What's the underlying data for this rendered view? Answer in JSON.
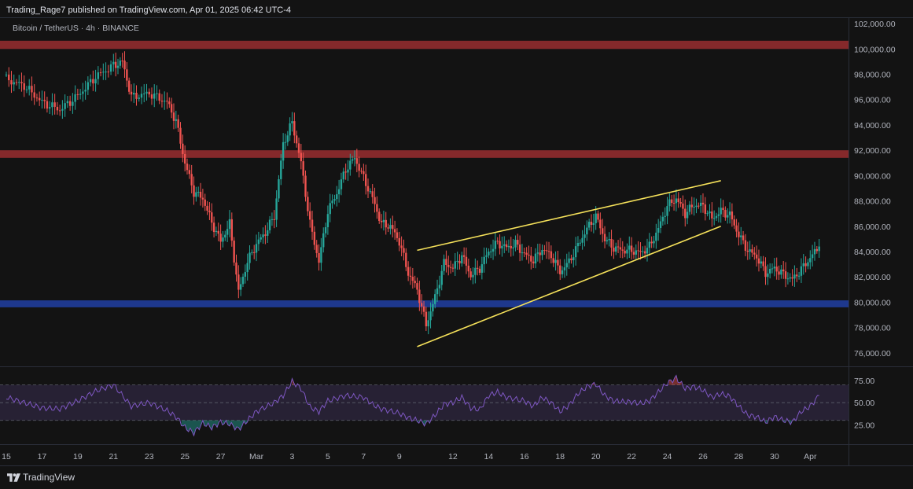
{
  "header": {
    "published": "Trading_Rage7 published on TradingView.com, Apr 01, 2025 06:42 UTC-4",
    "symbol": "Bitcoin / TetherUS · 4h · BINANCE"
  },
  "footer": {
    "brand": "TradingView",
    "brand_icon": "tradingview-logo-icon"
  },
  "colors": {
    "background": "#131313",
    "up": "#26a69a",
    "down": "#ef5350",
    "resistance_zone": "#8b2a2c",
    "support_zone": "#1f3a93",
    "trendline": "#f5e15a",
    "rsi_line": "#7e57c2",
    "rsi_band": "#2a2338"
  },
  "chart_data": [
    {
      "type": "candlestick",
      "title": "",
      "timeframe": "4h",
      "ylim": [
        75000,
        102500
      ],
      "y_ticks": [
        "76,000.00",
        "78,000.00",
        "80,000.00",
        "82,000.00",
        "84,000.00",
        "86,000.00",
        "88,000.00",
        "90,000.00",
        "92,000.00",
        "94,000.00",
        "96,000.00",
        "98,000.00",
        "100,000.00",
        "102,000.00"
      ],
      "x_ticks": [
        "15",
        "17",
        "19",
        "21",
        "23",
        "25",
        "27",
        "Mar",
        "3",
        "5",
        "7",
        "9",
        "12",
        "14",
        "16",
        "18",
        "20",
        "22",
        "24",
        "26",
        "28",
        "30",
        "Apr"
      ],
      "x_range": [
        "2025-02-15",
        "2025-04-02"
      ],
      "grid": false,
      "zones": [
        {
          "kind": "resistance",
          "from": 100000,
          "to": 100650
        },
        {
          "kind": "resistance",
          "from": 91400,
          "to": 92000
        },
        {
          "kind": "support",
          "from": 79600,
          "to": 80150
        }
      ],
      "trendlines": [
        {
          "x1": "2025-03-10",
          "y1": 84100,
          "x2": "2025-03-27",
          "y2": 89600
        },
        {
          "x1": "2025-03-10",
          "y1": 76500,
          "x2": "2025-03-27",
          "y2": 86000
        }
      ],
      "series": [
        {
          "type": "close_path",
          "points": [
            [
              "2025-02-15",
              97600
            ],
            [
              "2025-02-16",
              97100
            ],
            [
              "2025-02-17",
              95800
            ],
            [
              "2025-02-18",
              95200
            ],
            [
              "2025-02-19",
              96300
            ],
            [
              "2025-02-20",
              97800
            ],
            [
              "2025-02-21",
              98700
            ],
            [
              "2025-02-21T12",
              99000
            ],
            [
              "2025-02-22",
              96200
            ],
            [
              "2025-02-23",
              96500
            ],
            [
              "2025-02-24",
              95800
            ],
            [
              "2025-02-24T12",
              94300
            ],
            [
              "2025-02-25",
              91000
            ],
            [
              "2025-02-25T12",
              88700
            ],
            [
              "2025-02-26",
              88200
            ],
            [
              "2025-02-26T12",
              86300
            ],
            [
              "2025-02-27",
              84800
            ],
            [
              "2025-02-27T12",
              86200
            ],
            [
              "2025-02-28",
              80800
            ],
            [
              "2025-02-28T12",
              83200
            ],
            [
              "2025-03-01",
              84600
            ],
            [
              "2025-03-01T12",
              85500
            ],
            [
              "2025-03-02",
              86800
            ],
            [
              "2025-03-02T12",
              92500
            ],
            [
              "2025-03-03",
              94200
            ],
            [
              "2025-03-03T12",
              91000
            ],
            [
              "2025-03-04",
              86200
            ],
            [
              "2025-03-04T12",
              83200
            ],
            [
              "2025-03-05",
              87200
            ],
            [
              "2025-03-05T12",
              88600
            ],
            [
              "2025-03-06",
              90500
            ],
            [
              "2025-03-06T12",
              91400
            ],
            [
              "2025-03-07",
              89800
            ],
            [
              "2025-03-07T12",
              88200
            ],
            [
              "2025-03-08",
              86200
            ],
            [
              "2025-03-08T12",
              86000
            ],
            [
              "2025-03-09",
              84800
            ],
            [
              "2025-03-09T12",
              82300
            ],
            [
              "2025-03-10",
              81000
            ],
            [
              "2025-03-10T12",
              78200
            ],
            [
              "2025-03-11",
              80400
            ],
            [
              "2025-03-11T12",
              83100
            ],
            [
              "2025-03-12",
              82700
            ],
            [
              "2025-03-12T12",
              83700
            ],
            [
              "2025-03-13",
              82100
            ],
            [
              "2025-03-13T12",
              82700
            ],
            [
              "2025-03-14",
              84000
            ],
            [
              "2025-03-14T12",
              84700
            ],
            [
              "2025-03-15",
              84300
            ],
            [
              "2025-03-15T12",
              84600
            ],
            [
              "2025-03-16",
              83800
            ],
            [
              "2025-03-16T12",
              83300
            ],
            [
              "2025-03-17",
              84200
            ],
            [
              "2025-03-17T12",
              83700
            ],
            [
              "2025-03-18",
              82400
            ],
            [
              "2025-03-18T12",
              83200
            ],
            [
              "2025-03-19",
              84500
            ],
            [
              "2025-03-19T12",
              85800
            ],
            [
              "2025-03-20",
              86800
            ],
            [
              "2025-03-20T12",
              85000
            ],
            [
              "2025-03-21",
              84300
            ],
            [
              "2025-03-21T12",
              84100
            ],
            [
              "2025-03-22",
              84100
            ],
            [
              "2025-03-22T12",
              83900
            ],
            [
              "2025-03-23",
              84400
            ],
            [
              "2025-03-23T12",
              85800
            ],
            [
              "2025-03-24",
              87600
            ],
            [
              "2025-03-24T12",
              88200
            ],
            [
              "2025-03-25",
              87000
            ],
            [
              "2025-03-25T12",
              87700
            ],
            [
              "2025-03-26",
              87600
            ],
            [
              "2025-03-26T12",
              86600
            ],
            [
              "2025-03-27",
              87200
            ],
            [
              "2025-03-27T12",
              86900
            ],
            [
              "2025-03-28",
              85300
            ],
            [
              "2025-03-28T12",
              84100
            ],
            [
              "2025-03-29",
              83600
            ],
            [
              "2025-03-29T12",
              82300
            ],
            [
              "2025-03-30",
              82700
            ],
            [
              "2025-03-30T12",
              82200
            ],
            [
              "2025-03-31",
              81800
            ],
            [
              "2025-03-31T12",
              82600
            ],
            [
              "2025-04-01",
              83500
            ],
            [
              "2025-04-01T12",
              84400
            ]
          ]
        }
      ]
    },
    {
      "type": "line",
      "title": "",
      "ylim": [
        5,
        90
      ],
      "y_ticks": [
        "25.00",
        "50.00",
        "75.00"
      ],
      "bands": [
        30,
        70
      ],
      "series": [
        {
          "type": "rsi",
          "points": [
            [
              "2025-02-15",
              56
            ],
            [
              "2025-02-16",
              50
            ],
            [
              "2025-02-17",
              44
            ],
            [
              "2025-02-18",
              43
            ],
            [
              "2025-02-19",
              52
            ],
            [
              "2025-02-20",
              63
            ],
            [
              "2025-02-21",
              70
            ],
            [
              "2025-02-22",
              46
            ],
            [
              "2025-02-23",
              50
            ],
            [
              "2025-02-24",
              41
            ],
            [
              "2025-02-24T12",
              34
            ],
            [
              "2025-02-25",
              22
            ],
            [
              "2025-02-25T12",
              16
            ],
            [
              "2025-02-26",
              27
            ],
            [
              "2025-02-26T12",
              22
            ],
            [
              "2025-02-27",
              28
            ],
            [
              "2025-02-27T12",
              26
            ],
            [
              "2025-02-28",
              20
            ],
            [
              "2025-02-28T12",
              30
            ],
            [
              "2025-03-01",
              40
            ],
            [
              "2025-03-02",
              50
            ],
            [
              "2025-03-02T12",
              58
            ],
            [
              "2025-03-03",
              74
            ],
            [
              "2025-03-03T12",
              66
            ],
            [
              "2025-03-04",
              45
            ],
            [
              "2025-03-04T12",
              40
            ],
            [
              "2025-03-05",
              52
            ],
            [
              "2025-03-06",
              58
            ],
            [
              "2025-03-07",
              56
            ],
            [
              "2025-03-07T12",
              48
            ],
            [
              "2025-03-08",
              43
            ],
            [
              "2025-03-09",
              38
            ],
            [
              "2025-03-09T12",
              33
            ],
            [
              "2025-03-10",
              30
            ],
            [
              "2025-03-10T12",
              26
            ],
            [
              "2025-03-11",
              36
            ],
            [
              "2025-03-11T12",
              48
            ],
            [
              "2025-03-12",
              50
            ],
            [
              "2025-03-12T12",
              56
            ],
            [
              "2025-03-13",
              44
            ],
            [
              "2025-03-13T12",
              42
            ],
            [
              "2025-03-14",
              58
            ],
            [
              "2025-03-14T12",
              62
            ],
            [
              "2025-03-15",
              56
            ],
            [
              "2025-03-16",
              52
            ],
            [
              "2025-03-16T12",
              46
            ],
            [
              "2025-03-17",
              56
            ],
            [
              "2025-03-17T12",
              50
            ],
            [
              "2025-03-18",
              40
            ],
            [
              "2025-03-18T12",
              47
            ],
            [
              "2025-03-19",
              60
            ],
            [
              "2025-03-19T12",
              68
            ],
            [
              "2025-03-20",
              71
            ],
            [
              "2025-03-20T12",
              58
            ],
            [
              "2025-03-21",
              52
            ],
            [
              "2025-03-21T12",
              51
            ],
            [
              "2025-03-22",
              51
            ],
            [
              "2025-03-22T12",
              49
            ],
            [
              "2025-03-23",
              52
            ],
            [
              "2025-03-23T12",
              62
            ],
            [
              "2025-03-24",
              72
            ],
            [
              "2025-03-24T12",
              78
            ],
            [
              "2025-03-25",
              66
            ],
            [
              "2025-03-25T12",
              68
            ],
            [
              "2025-03-26",
              64
            ],
            [
              "2025-03-26T12",
              56
            ],
            [
              "2025-03-27",
              60
            ],
            [
              "2025-03-27T12",
              57
            ],
            [
              "2025-03-28",
              46
            ],
            [
              "2025-03-28T12",
              36
            ],
            [
              "2025-03-29",
              34
            ],
            [
              "2025-03-29T12",
              28
            ],
            [
              "2025-03-30",
              34
            ],
            [
              "2025-03-30T12",
              30
            ],
            [
              "2025-03-31",
              28
            ],
            [
              "2025-03-31T12",
              40
            ],
            [
              "2025-04-01",
              46
            ],
            [
              "2025-04-01T12",
              58
            ]
          ]
        }
      ]
    }
  ]
}
